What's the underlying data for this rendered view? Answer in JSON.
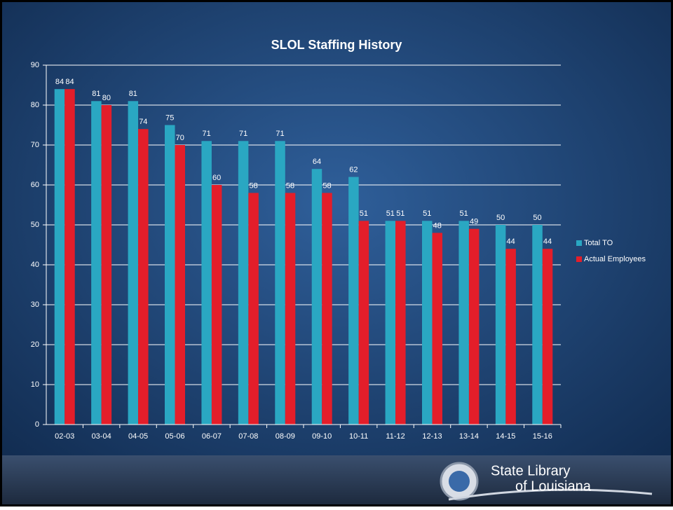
{
  "chart_data": {
    "type": "bar",
    "title": "SLOL Staffing History",
    "categories": [
      "02-03",
      "03-04",
      "04-05",
      "05-06",
      "06-07",
      "07-08",
      "08-09",
      "09-10",
      "10-11",
      "11-12",
      "12-13",
      "13-14",
      "14-15",
      "15-16"
    ],
    "series": [
      {
        "name": "Total TO",
        "color": "#2aa7c2",
        "values": [
          84,
          81,
          81,
          75,
          71,
          71,
          71,
          64,
          62,
          51,
          51,
          51,
          50,
          50
        ]
      },
      {
        "name": "Actual Employees",
        "color": "#e31e2a",
        "values": [
          84,
          80,
          74,
          70,
          60,
          58,
          58,
          58,
          51,
          51,
          48,
          49,
          44,
          44
        ]
      }
    ],
    "ylim": [
      0,
      90
    ],
    "yticks": [
      0,
      10,
      20,
      30,
      40,
      50,
      60,
      70,
      80,
      90
    ],
    "grid": true,
    "legend": "right"
  },
  "footer": {
    "logo_line1": "State Library",
    "logo_line2": "of Louisiana"
  }
}
